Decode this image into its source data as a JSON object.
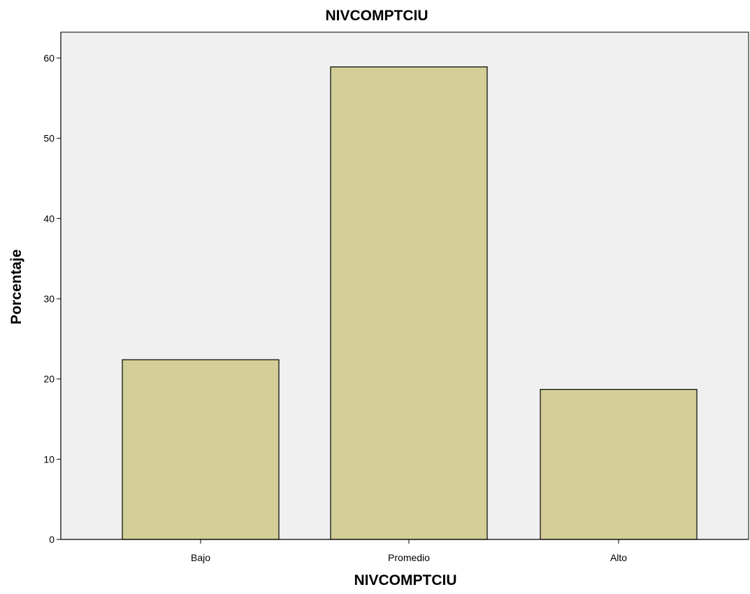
{
  "chart_data": {
    "type": "bar",
    "title": "NIVCOMPTCIU",
    "xlabel": "NIVCOMPTCIU",
    "ylabel": "Porcentaje",
    "categories": [
      "Bajo",
      "Promedio",
      "Alto"
    ],
    "values": [
      22.4,
      58.9,
      18.7
    ],
    "ylim": [
      0,
      60
    ],
    "yticks": [
      "0",
      "10",
      "20",
      "30",
      "40",
      "50",
      "60"
    ],
    "grid": false,
    "legend": "none"
  },
  "colors": {
    "plot_background": "#f0f0f0",
    "bar_fill": "#d3ce97",
    "bar_stroke": "#000000",
    "axis": "#000000"
  }
}
